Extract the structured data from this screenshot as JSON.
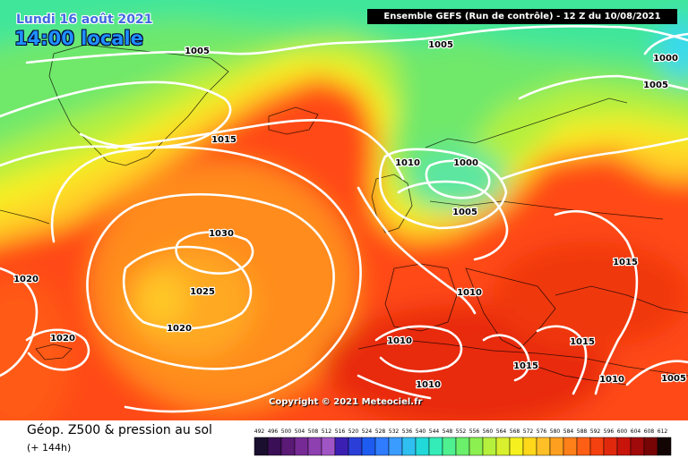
{
  "map": {
    "date_label": "Lundi 16 août 2021",
    "time_label": "14:00 locale",
    "header": "Ensemble GEFS  (Run de contrôle)  -  12 Z du 10/08/2021",
    "copyright": "Copyright © 2021 Meteociel.fr",
    "isobar_labels": [
      "1005",
      "1005",
      "1000",
      "1005",
      "1015",
      "1010",
      "1000",
      "1005",
      "1030",
      "1020",
      "1025",
      "1020",
      "1010",
      "1015",
      "1020",
      "1010",
      "1015",
      "1015",
      "1010",
      "1010",
      "1005"
    ]
  },
  "footer": {
    "title": "Géop. Z500 & pression au sol",
    "subtitle": "(+ 144h)"
  },
  "scale": {
    "ticks": [
      "492",
      "496",
      "500",
      "504",
      "508",
      "512",
      "516",
      "520",
      "524",
      "528",
      "532",
      "536",
      "540",
      "544",
      "548",
      "552",
      "556",
      "560",
      "564",
      "568",
      "572",
      "576",
      "580",
      "584",
      "588",
      "592",
      "596",
      "600",
      "604",
      "608",
      "612"
    ],
    "colors": [
      "#1a0f2e",
      "#3a0f55",
      "#5a1a75",
      "#762a95",
      "#8e3fb0",
      "#a055c5",
      "#3b1fb3",
      "#2b3fd8",
      "#1e5cf0",
      "#2f7cff",
      "#3a9cff",
      "#2fbff0",
      "#22d9d9",
      "#33ecb8",
      "#4ff08f",
      "#6af06a",
      "#8cf050",
      "#b4f03c",
      "#d8f02d",
      "#f5f01e",
      "#ffd81a",
      "#ffbf26",
      "#ff9f1f",
      "#ff7f19",
      "#ff5f14",
      "#f5400f",
      "#e0280c",
      "#c8140a",
      "#a00a0a",
      "#780505",
      "#140505"
    ]
  }
}
